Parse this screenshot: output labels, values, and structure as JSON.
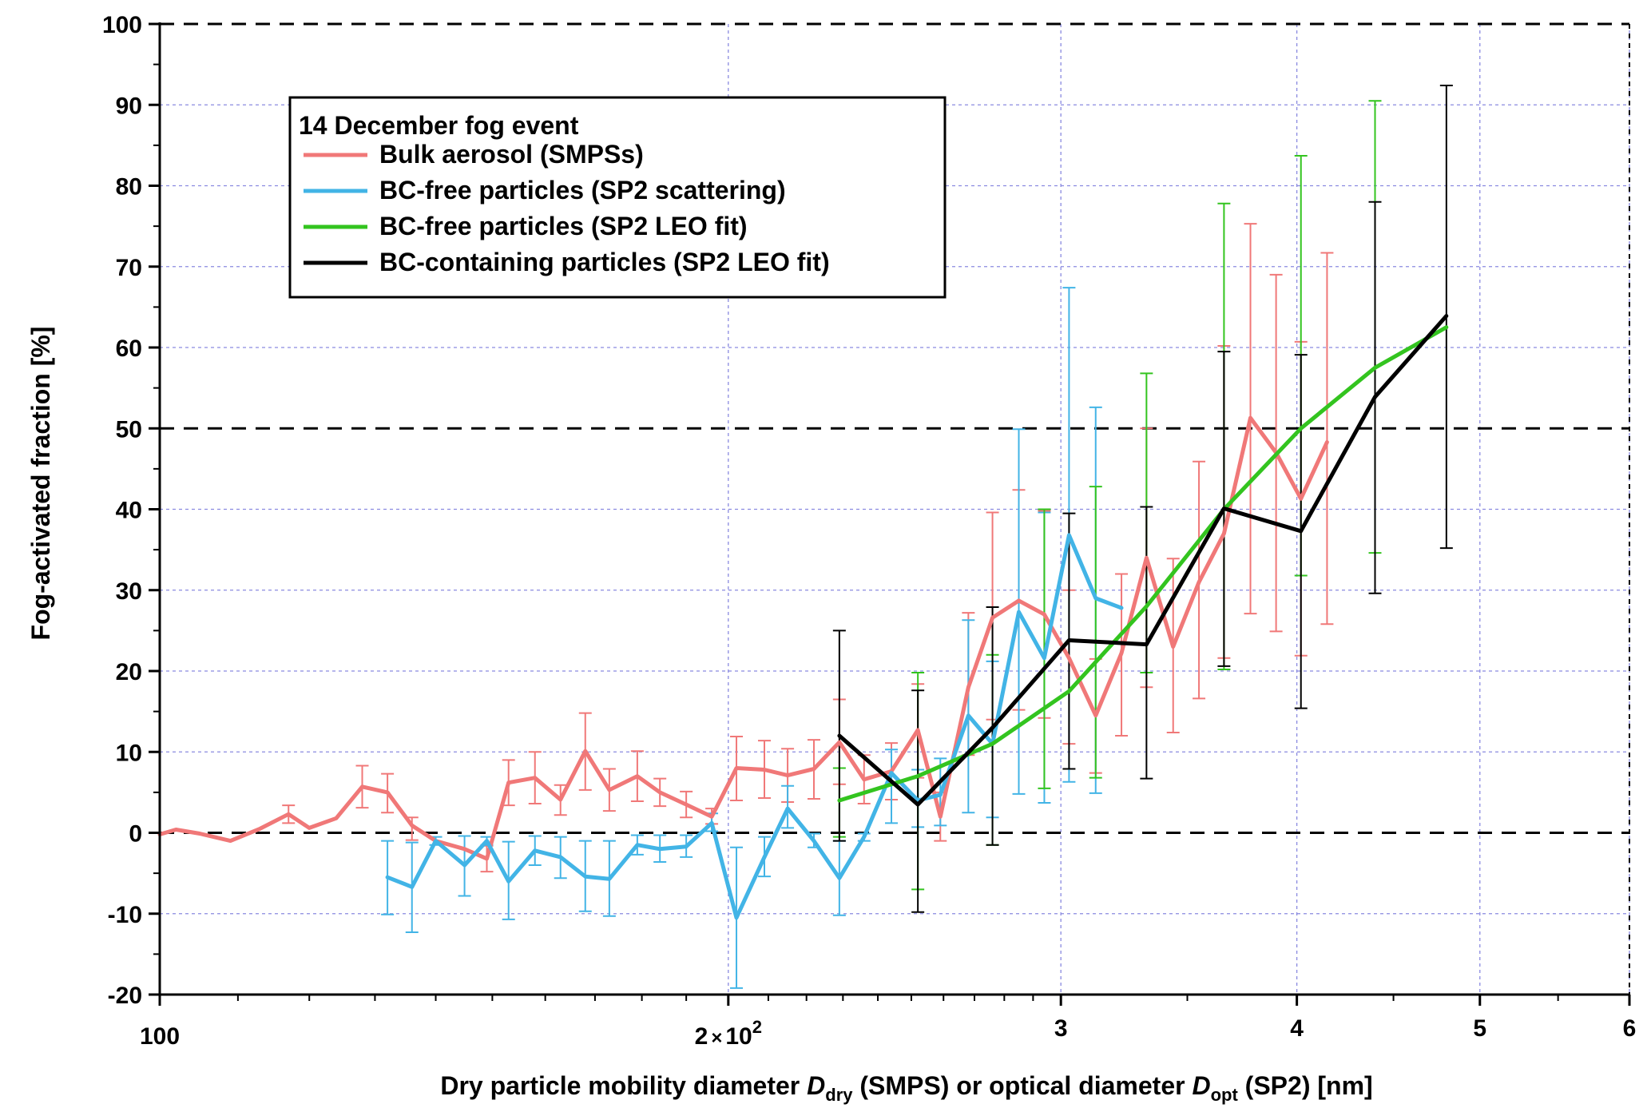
{
  "chart_data": {
    "type": "line",
    "title": "",
    "legend_title": "14 December fog event",
    "legend_position": "top-left",
    "xscale": "log",
    "xlim": [
      100,
      600
    ],
    "ylim": [
      -20,
      100
    ],
    "grid": true,
    "x_ticks": [
      {
        "value": 100,
        "label": "100"
      },
      {
        "value": 200,
        "label": "2x10²"
      },
      {
        "value": 300,
        "label": "3"
      },
      {
        "value": 400,
        "label": "4"
      },
      {
        "value": 500,
        "label": "5"
      },
      {
        "value": 600,
        "label": "6"
      }
    ],
    "y_ticks": [
      {
        "value": 100,
        "label": "100"
      },
      {
        "value": 90,
        "label": "90"
      },
      {
        "value": 80,
        "label": "80"
      },
      {
        "value": 70,
        "label": "70"
      },
      {
        "value": 60,
        "label": "60"
      },
      {
        "value": 50,
        "label": "50"
      },
      {
        "value": 40,
        "label": "40"
      },
      {
        "value": 30,
        "label": "30"
      },
      {
        "value": 20,
        "label": "20"
      },
      {
        "value": 10,
        "label": "10"
      },
      {
        "value": 0,
        "label": "0"
      },
      {
        "value": -10,
        "label": "-10"
      },
      {
        "value": -20,
        "label": "-20"
      }
    ],
    "dashed_reference_lines": [
      0,
      50,
      100
    ],
    "xlabel_parts": [
      {
        "text": "Dry particle mobility diameter ",
        "style": "normal"
      },
      {
        "text": "D",
        "style": "italic"
      },
      {
        "text": "dry",
        "style": "sub"
      },
      {
        "text": " (SMPS) or optical diameter ",
        "style": "normal"
      },
      {
        "text": "D",
        "style": "italic"
      },
      {
        "text": "opt",
        "style": "sub"
      },
      {
        "text": " (SP2) [nm]",
        "style": "normal"
      }
    ],
    "ylabel": "Fog-activated fraction [%]",
    "series": [
      {
        "name": "Bulk aerosol (SMPSs)",
        "color": "#f07878",
        "points": [
          [
            100,
            -0.2
          ],
          [
            102,
            0.4
          ],
          [
            105,
            -0.1
          ],
          [
            109,
            -1.0
          ],
          [
            113,
            0.5
          ],
          [
            117,
            2.3
          ],
          [
            120,
            0.6
          ],
          [
            124,
            1.8
          ],
          [
            128,
            5.7
          ],
          [
            132,
            5.0
          ],
          [
            136,
            0.9
          ],
          [
            140,
            -1.0
          ],
          [
            145,
            -2.0
          ],
          [
            149,
            -3.2
          ],
          [
            153,
            6.2
          ],
          [
            158,
            6.8
          ],
          [
            163,
            4.1
          ],
          [
            168,
            10.1
          ],
          [
            173,
            5.3
          ],
          [
            179,
            7.0
          ],
          [
            184,
            5.0
          ],
          [
            190,
            3.5
          ],
          [
            196,
            2.0
          ],
          [
            202,
            8.0
          ],
          [
            209,
            7.8
          ],
          [
            215,
            7.1
          ],
          [
            222,
            7.9
          ],
          [
            229,
            11.2
          ],
          [
            236,
            6.6
          ],
          [
            244,
            7.6
          ],
          [
            252,
            12.7
          ],
          [
            259,
            2.0
          ],
          [
            268,
            18.0
          ],
          [
            276,
            26.6
          ],
          [
            285,
            28.7
          ],
          [
            294,
            27.0
          ],
          [
            303,
            21.6
          ],
          [
            313,
            14.5
          ],
          [
            323,
            22.2
          ],
          [
            333,
            34.0
          ],
          [
            344,
            23.0
          ],
          [
            355,
            31.0
          ],
          [
            366,
            37.0
          ],
          [
            378,
            51.3
          ],
          [
            390,
            47.0
          ],
          [
            402,
            41.3
          ],
          [
            415,
            48.3
          ]
        ],
        "error_bars": [
          [
            117,
            1.2,
            3.4
          ],
          [
            128,
            3.1,
            8.3
          ],
          [
            132,
            2.5,
            7.3
          ],
          [
            136,
            -0.9,
            1.9
          ],
          [
            149,
            -4.8,
            -1.6
          ],
          [
            153,
            3.4,
            9.0
          ],
          [
            158,
            3.6,
            10.0
          ],
          [
            163,
            2.2,
            5.9
          ],
          [
            168,
            5.3,
            14.8
          ],
          [
            173,
            2.7,
            7.9
          ],
          [
            179,
            3.9,
            10.1
          ],
          [
            184,
            3.3,
            6.7
          ],
          [
            190,
            1.9,
            5.1
          ],
          [
            196,
            1.1,
            3.0
          ],
          [
            202,
            4.0,
            11.9
          ],
          [
            209,
            4.3,
            11.4
          ],
          [
            215,
            3.8,
            10.4
          ],
          [
            222,
            4.2,
            11.5
          ],
          [
            229,
            6.0,
            16.5
          ],
          [
            236,
            3.6,
            9.6
          ],
          [
            244,
            4.1,
            11.1
          ],
          [
            252,
            6.8,
            18.4
          ],
          [
            259,
            -1.0,
            5.0
          ],
          [
            268,
            9.6,
            27.2
          ],
          [
            276,
            14.0,
            39.6
          ],
          [
            285,
            15.2,
            42.4
          ],
          [
            294,
            14.2,
            39.8
          ],
          [
            303,
            11.0,
            30.0
          ],
          [
            313,
            7.4,
            21.5
          ],
          [
            323,
            12.0,
            32.0
          ],
          [
            333,
            18.0,
            50.0
          ],
          [
            344,
            12.4,
            33.9
          ],
          [
            355,
            16.6,
            45.9
          ],
          [
            366,
            21.6,
            60.2
          ],
          [
            378,
            27.1,
            75.3
          ],
          [
            390,
            24.9,
            69.0
          ],
          [
            402,
            21.9,
            60.7
          ],
          [
            415,
            25.8,
            71.7
          ]
        ]
      },
      {
        "name": "BC-free particles (SP2 scattering)",
        "color": "#42b4e6",
        "points": [
          [
            132,
            -5.5
          ],
          [
            136,
            -6.7
          ],
          [
            140,
            -1.0
          ],
          [
            145,
            -4.0
          ],
          [
            149,
            -1.0
          ],
          [
            153,
            -6.0
          ],
          [
            158,
            -2.2
          ],
          [
            163,
            -3.0
          ],
          [
            168,
            -5.4
          ],
          [
            173,
            -5.7
          ],
          [
            179,
            -1.5
          ],
          [
            184,
            -2.0
          ],
          [
            190,
            -1.7
          ],
          [
            196,
            1.2
          ],
          [
            202,
            -10.5
          ],
          [
            209,
            -3.0
          ],
          [
            215,
            3.0
          ],
          [
            222,
            -1.0
          ],
          [
            229,
            -5.6
          ],
          [
            236,
            -0.5
          ],
          [
            244,
            7.4
          ],
          [
            252,
            4.0
          ],
          [
            259,
            4.7
          ],
          [
            268,
            14.5
          ],
          [
            276,
            11.0
          ],
          [
            285,
            27.3
          ],
          [
            294,
            21.6
          ],
          [
            303,
            36.8
          ],
          [
            313,
            29.0
          ],
          [
            323,
            27.8
          ]
        ],
        "error_bars": [
          [
            132,
            -10.1,
            -1.0
          ],
          [
            136,
            -12.3,
            -1.2
          ],
          [
            140,
            -1.5,
            -0.5
          ],
          [
            145,
            -7.8,
            -0.4
          ],
          [
            149,
            -1.5,
            -0.5
          ],
          [
            153,
            -10.7,
            -1.1
          ],
          [
            158,
            -4.0,
            -0.4
          ],
          [
            163,
            -5.6,
            -0.5
          ],
          [
            168,
            -9.7,
            -1.0
          ],
          [
            173,
            -10.3,
            -1.0
          ],
          [
            179,
            -2.7,
            -0.3
          ],
          [
            184,
            -3.6,
            -0.3
          ],
          [
            190,
            -3.0,
            -0.3
          ],
          [
            196,
            0.2,
            2.4
          ],
          [
            202,
            -19.2,
            -1.8
          ],
          [
            209,
            -5.4,
            -0.5
          ],
          [
            215,
            0.6,
            5.8
          ],
          [
            222,
            -1.8,
            -0.1
          ],
          [
            229,
            -10.2,
            -1.0
          ],
          [
            236,
            -1.0,
            -0.1
          ],
          [
            244,
            1.2,
            10.3
          ],
          [
            252,
            0.7,
            7.8
          ],
          [
            259,
            0.9,
            9.2
          ],
          [
            268,
            2.5,
            26.3
          ],
          [
            276,
            1.9,
            21.2
          ],
          [
            285,
            4.8,
            49.9
          ],
          [
            294,
            3.7,
            39.6
          ],
          [
            303,
            6.3,
            67.4
          ],
          [
            313,
            4.9,
            52.6
          ]
        ]
      },
      {
        "name": "BC-free particles (SP2 LEO fit)",
        "color": "#33c41f",
        "points": [
          [
            229,
            4.0
          ],
          [
            252,
            7.0
          ],
          [
            276,
            11.0
          ],
          [
            303,
            17.5
          ],
          [
            333,
            28.0
          ],
          [
            366,
            40.0
          ],
          [
            402,
            50.0
          ],
          [
            440,
            57.5
          ],
          [
            480,
            62.5
          ]
        ],
        "error_bars": [
          [
            229,
            -0.5,
            8.0
          ],
          [
            252,
            -7.0,
            19.8
          ],
          [
            276,
            -1.5,
            22.0
          ],
          [
            294,
            5.5,
            40.0
          ],
          [
            313,
            6.8,
            42.8
          ],
          [
            333,
            19.8,
            56.8
          ],
          [
            366,
            20.2,
            77.8
          ],
          [
            402,
            31.8,
            83.7
          ],
          [
            440,
            34.6,
            90.5
          ]
        ]
      },
      {
        "name": "BC-containing particles (SP2 LEO fit)",
        "color": "#000000",
        "points": [
          [
            229,
            12.0
          ],
          [
            252,
            3.5
          ],
          [
            276,
            13.0
          ],
          [
            303,
            23.8
          ],
          [
            333,
            23.3
          ],
          [
            366,
            40.1
          ],
          [
            402,
            37.3
          ],
          [
            440,
            53.9
          ],
          [
            480,
            63.9
          ]
        ],
        "error_bars": [
          [
            229,
            -1.0,
            25.0
          ],
          [
            252,
            -9.8,
            17.6
          ],
          [
            276,
            -1.5,
            27.9
          ],
          [
            303,
            7.9,
            39.5
          ],
          [
            333,
            6.7,
            40.3
          ],
          [
            366,
            20.6,
            59.5
          ],
          [
            402,
            15.4,
            59.1
          ],
          [
            440,
            29.6,
            78.0
          ],
          [
            480,
            35.2,
            92.4
          ]
        ]
      }
    ]
  }
}
